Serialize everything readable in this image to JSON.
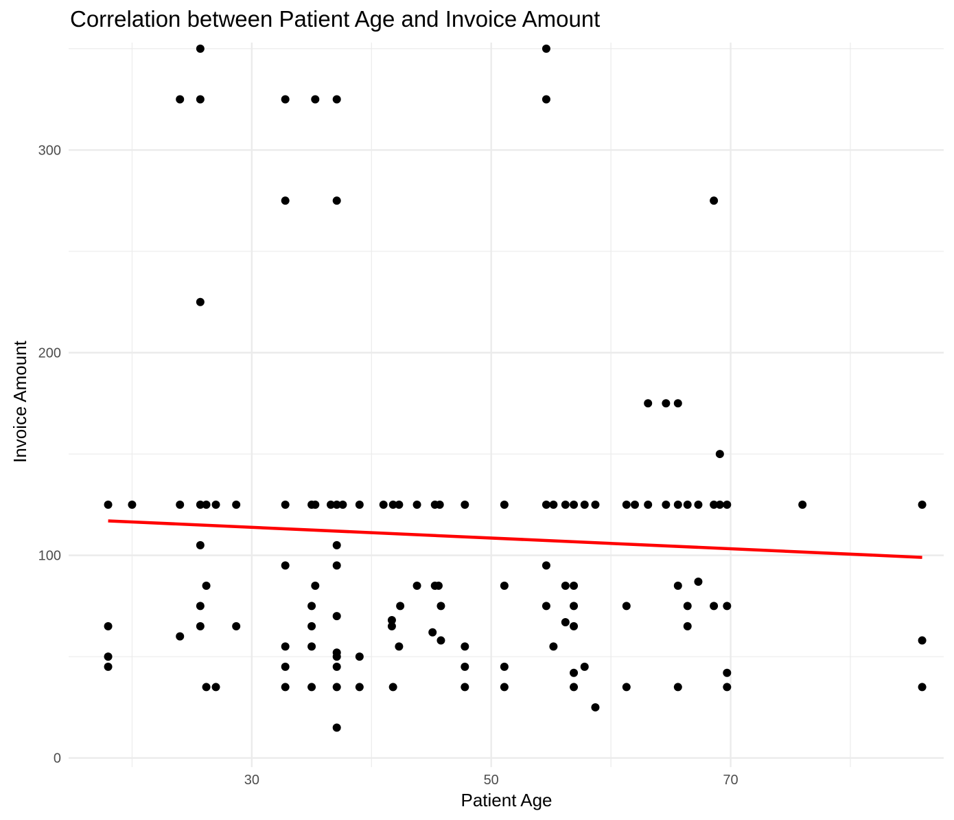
{
  "chart_data": {
    "type": "scatter",
    "title": "Correlation between Patient Age and Invoice Amount",
    "xlabel": "Patient Age",
    "ylabel": "Invoice Amount",
    "xlim": [
      14.7,
      87.8
    ],
    "ylim": [
      -4.5,
      353
    ],
    "x_ticks": [
      30,
      50,
      70
    ],
    "x_minor_ticks": [
      20,
      40,
      60,
      80
    ],
    "y_ticks": [
      0,
      100,
      200,
      300
    ],
    "y_minor_ticks": [
      50,
      150,
      250,
      350
    ],
    "grid": true,
    "point_color": "#000000",
    "trend_color": "#ff0000",
    "trendline": {
      "x": [
        18,
        86
      ],
      "y": [
        117,
        99
      ]
    },
    "points": [
      {
        "x": 18,
        "y": 125
      },
      {
        "x": 18,
        "y": 65
      },
      {
        "x": 18,
        "y": 50
      },
      {
        "x": 18,
        "y": 45
      },
      {
        "x": 20,
        "y": 125
      },
      {
        "x": 24,
        "y": 325
      },
      {
        "x": 24,
        "y": 125
      },
      {
        "x": 24,
        "y": 60
      },
      {
        "x": 25.7,
        "y": 350
      },
      {
        "x": 25.7,
        "y": 325
      },
      {
        "x": 25.7,
        "y": 225
      },
      {
        "x": 25.7,
        "y": 125
      },
      {
        "x": 25.7,
        "y": 105
      },
      {
        "x": 25.7,
        "y": 75
      },
      {
        "x": 25.7,
        "y": 65
      },
      {
        "x": 26.2,
        "y": 125
      },
      {
        "x": 26.2,
        "y": 85
      },
      {
        "x": 26.2,
        "y": 35
      },
      {
        "x": 27,
        "y": 125
      },
      {
        "x": 27,
        "y": 35
      },
      {
        "x": 28.7,
        "y": 125
      },
      {
        "x": 28.7,
        "y": 65
      },
      {
        "x": 32.8,
        "y": 325
      },
      {
        "x": 32.8,
        "y": 275
      },
      {
        "x": 32.8,
        "y": 125
      },
      {
        "x": 32.8,
        "y": 95
      },
      {
        "x": 32.8,
        "y": 55
      },
      {
        "x": 32.8,
        "y": 45
      },
      {
        "x": 32.8,
        "y": 35
      },
      {
        "x": 35,
        "y": 125
      },
      {
        "x": 35,
        "y": 75
      },
      {
        "x": 35,
        "y": 65
      },
      {
        "x": 35,
        "y": 55
      },
      {
        "x": 35,
        "y": 35
      },
      {
        "x": 35.3,
        "y": 325
      },
      {
        "x": 35.3,
        "y": 125
      },
      {
        "x": 35.3,
        "y": 85
      },
      {
        "x": 36.6,
        "y": 125
      },
      {
        "x": 37.1,
        "y": 325
      },
      {
        "x": 37.1,
        "y": 275
      },
      {
        "x": 37.1,
        "y": 125
      },
      {
        "x": 37.1,
        "y": 105
      },
      {
        "x": 37.1,
        "y": 95
      },
      {
        "x": 37.1,
        "y": 70
      },
      {
        "x": 37.1,
        "y": 52
      },
      {
        "x": 37.1,
        "y": 50
      },
      {
        "x": 37.1,
        "y": 45
      },
      {
        "x": 37.1,
        "y": 35
      },
      {
        "x": 37.1,
        "y": 15
      },
      {
        "x": 37.6,
        "y": 125
      },
      {
        "x": 39,
        "y": 125
      },
      {
        "x": 39,
        "y": 50
      },
      {
        "x": 39,
        "y": 35
      },
      {
        "x": 41,
        "y": 125
      },
      {
        "x": 41.8,
        "y": 125
      },
      {
        "x": 41.7,
        "y": 68
      },
      {
        "x": 41.7,
        "y": 65
      },
      {
        "x": 41.8,
        "y": 35
      },
      {
        "x": 42.3,
        "y": 125
      },
      {
        "x": 42.4,
        "y": 75
      },
      {
        "x": 42.3,
        "y": 55
      },
      {
        "x": 43.8,
        "y": 125
      },
      {
        "x": 43.8,
        "y": 85
      },
      {
        "x": 45.3,
        "y": 125
      },
      {
        "x": 45.3,
        "y": 85
      },
      {
        "x": 45.1,
        "y": 62
      },
      {
        "x": 45.7,
        "y": 125
      },
      {
        "x": 45.6,
        "y": 85
      },
      {
        "x": 45.8,
        "y": 75
      },
      {
        "x": 45.8,
        "y": 58
      },
      {
        "x": 47.8,
        "y": 125
      },
      {
        "x": 47.8,
        "y": 55
      },
      {
        "x": 47.8,
        "y": 45
      },
      {
        "x": 47.8,
        "y": 35
      },
      {
        "x": 51.1,
        "y": 125
      },
      {
        "x": 51.1,
        "y": 85
      },
      {
        "x": 51.1,
        "y": 45
      },
      {
        "x": 51.1,
        "y": 35
      },
      {
        "x": 54.6,
        "y": 350
      },
      {
        "x": 54.6,
        "y": 325
      },
      {
        "x": 54.6,
        "y": 125
      },
      {
        "x": 54.6,
        "y": 95
      },
      {
        "x": 54.6,
        "y": 75
      },
      {
        "x": 55.2,
        "y": 125
      },
      {
        "x": 55.2,
        "y": 55
      },
      {
        "x": 56.2,
        "y": 125
      },
      {
        "x": 56.2,
        "y": 85
      },
      {
        "x": 56.2,
        "y": 67
      },
      {
        "x": 56.9,
        "y": 125
      },
      {
        "x": 56.9,
        "y": 85
      },
      {
        "x": 56.9,
        "y": 75
      },
      {
        "x": 56.9,
        "y": 65
      },
      {
        "x": 56.9,
        "y": 42
      },
      {
        "x": 56.9,
        "y": 35
      },
      {
        "x": 57.8,
        "y": 125
      },
      {
        "x": 57.8,
        "y": 45
      },
      {
        "x": 58.7,
        "y": 125
      },
      {
        "x": 58.7,
        "y": 25
      },
      {
        "x": 61.3,
        "y": 125
      },
      {
        "x": 61.3,
        "y": 75
      },
      {
        "x": 61.3,
        "y": 35
      },
      {
        "x": 62,
        "y": 125
      },
      {
        "x": 63.1,
        "y": 175
      },
      {
        "x": 63.1,
        "y": 125
      },
      {
        "x": 64.6,
        "y": 175
      },
      {
        "x": 64.6,
        "y": 125
      },
      {
        "x": 65.6,
        "y": 175
      },
      {
        "x": 65.6,
        "y": 125
      },
      {
        "x": 65.6,
        "y": 85
      },
      {
        "x": 65.6,
        "y": 35
      },
      {
        "x": 66.4,
        "y": 125
      },
      {
        "x": 66.4,
        "y": 75
      },
      {
        "x": 66.4,
        "y": 65
      },
      {
        "x": 67.3,
        "y": 125
      },
      {
        "x": 67.3,
        "y": 87
      },
      {
        "x": 68.6,
        "y": 275
      },
      {
        "x": 68.6,
        "y": 125
      },
      {
        "x": 68.6,
        "y": 75
      },
      {
        "x": 69.1,
        "y": 150
      },
      {
        "x": 69.1,
        "y": 125
      },
      {
        "x": 69.7,
        "y": 125
      },
      {
        "x": 69.7,
        "y": 75
      },
      {
        "x": 69.7,
        "y": 42
      },
      {
        "x": 69.7,
        "y": 35
      },
      {
        "x": 76,
        "y": 125
      },
      {
        "x": 86,
        "y": 125
      },
      {
        "x": 86,
        "y": 58
      },
      {
        "x": 86,
        "y": 35
      }
    ]
  }
}
